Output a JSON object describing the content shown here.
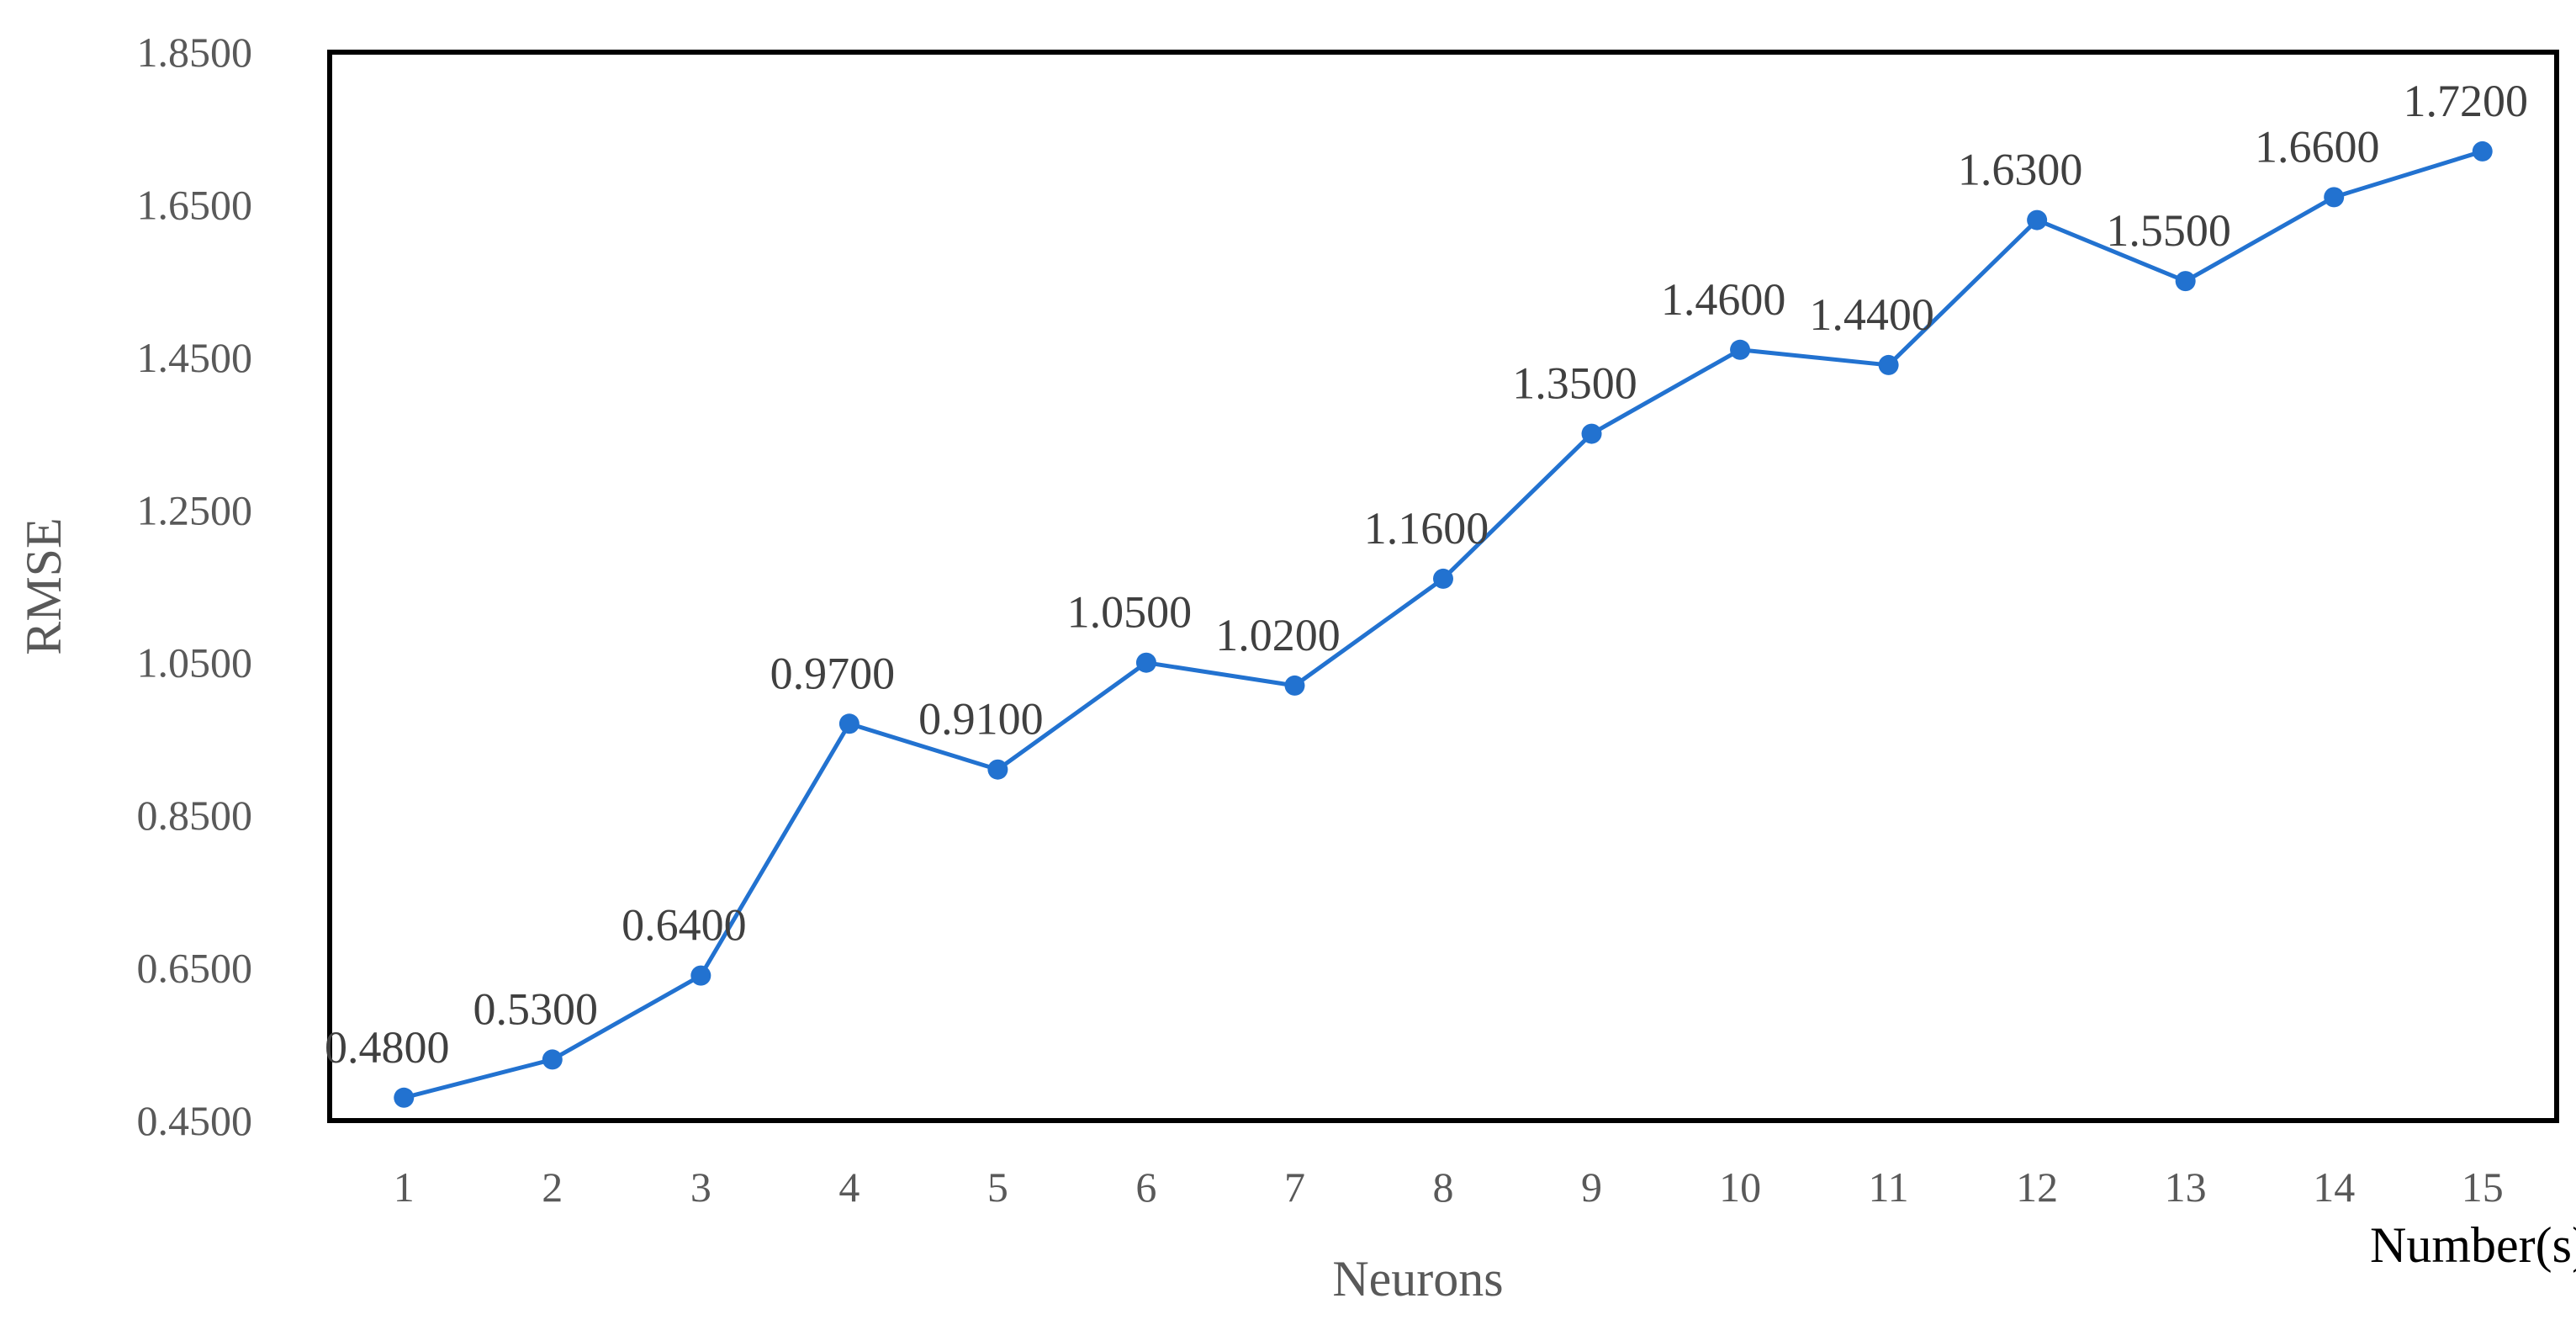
{
  "chart_data": {
    "type": "line",
    "title": "",
    "xlabel": "Neurons",
    "ylabel": "RMSE",
    "x_unit_label": "Number(s)",
    "x": [
      1,
      2,
      3,
      4,
      5,
      6,
      7,
      8,
      9,
      10,
      11,
      12,
      13,
      14,
      15
    ],
    "x_tick_labels": [
      "1",
      "2",
      "3",
      "4",
      "5",
      "6",
      "7",
      "8",
      "9",
      "10",
      "11",
      "12",
      "13",
      "14",
      "15"
    ],
    "series": [
      {
        "values": [
          0.48,
          0.53,
          0.64,
          0.97,
          0.91,
          1.05,
          1.02,
          1.16,
          1.35,
          1.46,
          1.44,
          1.63,
          1.55,
          1.66,
          1.72
        ],
        "data_labels": [
          "0.4800",
          "0.5300",
          "0.6400",
          "0.9700",
          "0.9100",
          "1.0500",
          "1.0200",
          "1.1600",
          "1.3500",
          "1.4600",
          "1.4400",
          "1.6300",
          "1.5500",
          "1.6600",
          "1.7200"
        ],
        "color": "#2272D0"
      }
    ],
    "ylim": [
      0.45,
      1.85
    ],
    "y_ticks": [
      0.45,
      0.65,
      0.85,
      1.05,
      1.25,
      1.45,
      1.65,
      1.85
    ],
    "y_tick_labels": [
      "0.4500",
      "0.6500",
      "0.8500",
      "1.0500",
      "1.2500",
      "1.4500",
      "1.6500",
      "1.8500"
    ],
    "grid": false,
    "legend": "none",
    "frame_color": "#000000",
    "tick_label_color": "#595959"
  }
}
